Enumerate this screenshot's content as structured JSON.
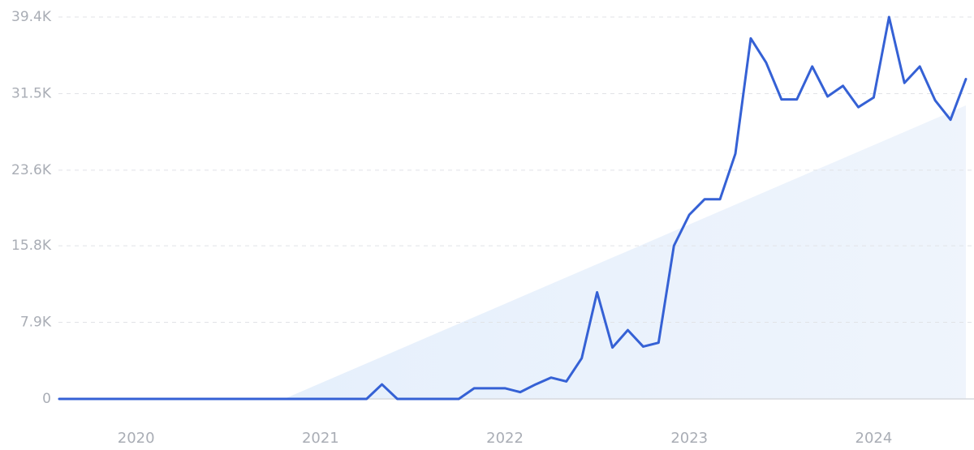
{
  "chart_data": {
    "type": "line",
    "categories": [
      null,
      null,
      null,
      null,
      null,
      "2020",
      null,
      null,
      null,
      null,
      null,
      null,
      null,
      null,
      null,
      null,
      null,
      "2021",
      null,
      null,
      null,
      null,
      null,
      null,
      null,
      null,
      null,
      null,
      null,
      "2022",
      null,
      null,
      null,
      null,
      null,
      null,
      null,
      null,
      null,
      null,
      null,
      "2023",
      null,
      null,
      null,
      null,
      null,
      null,
      null,
      null,
      null,
      null,
      null,
      "2024",
      null,
      null,
      null,
      null,
      null,
      null
    ],
    "series": [
      {
        "color": "#3561d5",
        "values": [
          0,
          0,
          0,
          0,
          0,
          0,
          0,
          0,
          0,
          0,
          0,
          0,
          0,
          0,
          0,
          0,
          0,
          0,
          0,
          0,
          0,
          1500,
          0,
          0,
          0,
          0,
          0,
          1100,
          1100,
          1100,
          700,
          1500,
          2200,
          1800,
          4200,
          11000,
          5300,
          7100,
          5400,
          5800,
          15800,
          19000,
          20600,
          20600,
          25300,
          37200,
          34700,
          30900,
          30900,
          34300,
          31200,
          32300,
          30100,
          31100,
          39400,
          32600,
          34300,
          30800,
          28800,
          33000
        ]
      }
    ],
    "ylim": [
      0,
      39400
    ],
    "yticks": [
      0,
      {
        "value": 7900,
        "label": "7.9K"
      },
      {
        "value": 15800,
        "label": "15.8K"
      },
      {
        "value": 23600,
        "label": "23.6K"
      },
      {
        "value": 31500,
        "label": "31.5K"
      },
      {
        "value": 39400,
        "label": "39.4K"
      }
    ],
    "grid": true
  }
}
